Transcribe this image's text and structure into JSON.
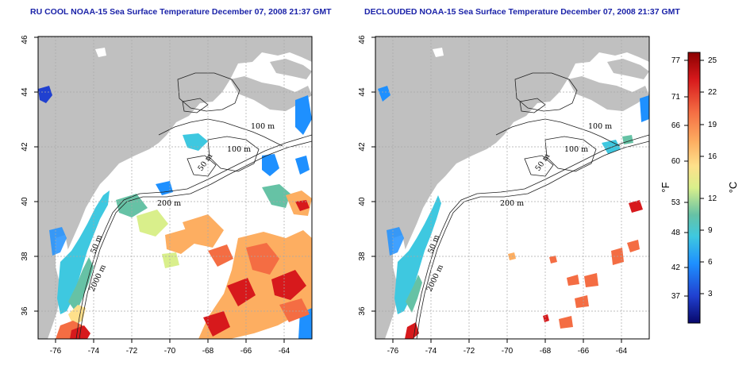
{
  "panels": [
    {
      "title": "RU COOL NOAA-15 Sea Surface Temperature December 07, 2008 21:37 GMT",
      "lon_ticks": [
        -76,
        -74,
        -72,
        -70,
        -68,
        -66,
        -64
      ],
      "lat_ticks": [
        36,
        38,
        40,
        42,
        44,
        46
      ],
      "contour_labels": [
        "100 m",
        "100 m",
        "50 m",
        "200 m",
        "50 m",
        "2000 m"
      ]
    },
    {
      "title": "DECLOUDED NOAA-15 Sea Surface Temperature December 07, 2008 21:37 GMT",
      "lon_ticks": [
        -76,
        -74,
        -72,
        -70,
        -68,
        -66,
        -64
      ],
      "lat_ticks": [
        36,
        38,
        40,
        42,
        44,
        46
      ],
      "contour_labels": [
        "100 m",
        "100 m",
        "50 m",
        "200 m",
        "50 m",
        "2000 m"
      ]
    }
  ],
  "colorbar": {
    "fahrenheit_labels": [
      "77",
      "71",
      "66",
      "60",
      "53",
      "48",
      "42",
      "37"
    ],
    "celsius_labels": [
      "25",
      "22",
      "19",
      "16",
      "12",
      "9",
      "6",
      "3"
    ],
    "unit_f": "°F",
    "unit_c": "°C",
    "colors": [
      "#8b0000",
      "#d7191c",
      "#f46d43",
      "#fdae61",
      "#fee08b",
      "#d9ef8b",
      "#66c2a5",
      "#3ec8e0",
      "#1e90ff",
      "#2040d0",
      "#08086b"
    ]
  },
  "map_colors": {
    "land": "#c0c0c0",
    "grid": "#a8a8a8"
  }
}
